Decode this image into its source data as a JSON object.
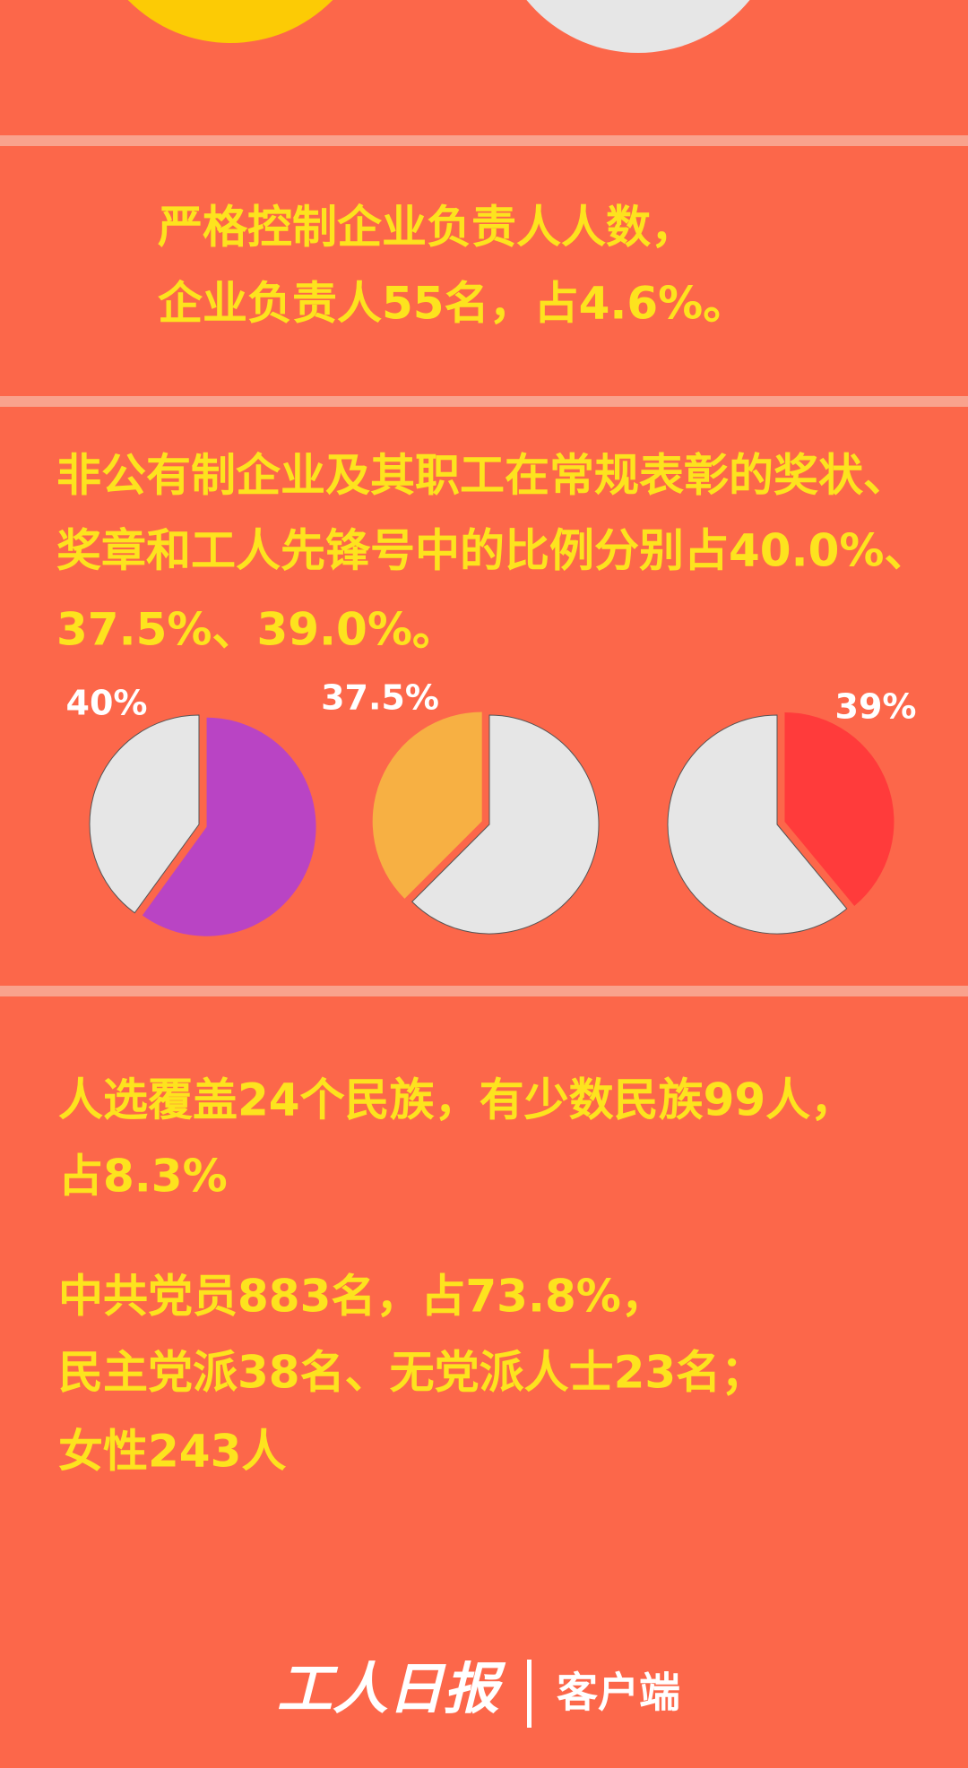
{
  "blocks": [
    {
      "lines": [
        "严格控制企业负责人人数，",
        "企业负责人55名，占4.6%。"
      ]
    },
    {
      "lines": [
        "非公有制企业及其职工在常规表彰的奖状、",
        "奖章和工人先锋号中的比例分别占40.0%、",
        "37.5%、39.0%。"
      ]
    },
    {
      "lines": [
        "人选覆盖24个民族，有少数民族99人，",
        "占8.3%",
        "中共党员883名，占73.8%，",
        "民主党派38名、无党派人士23名；",
        "女性243人"
      ]
    }
  ],
  "chart_data": [
    {
      "type": "pie",
      "values": [
        60,
        40
      ],
      "value_labels": [
        null,
        "40%"
      ],
      "colors": [
        "#b944c4",
        "#e6e6e6"
      ]
    },
    {
      "type": "pie",
      "values": [
        37.5,
        62.5
      ],
      "value_labels": [
        "37.5%",
        null
      ],
      "colors": [
        "#f7b043",
        "#e6e6e6"
      ]
    },
    {
      "type": "pie",
      "values": [
        39,
        61
      ],
      "value_labels": [
        "39%",
        null
      ],
      "colors": [
        "#ff3b3b",
        "#e6e6e6"
      ]
    }
  ],
  "footer": {
    "logo": "工人日报",
    "suffix": "客户端"
  }
}
